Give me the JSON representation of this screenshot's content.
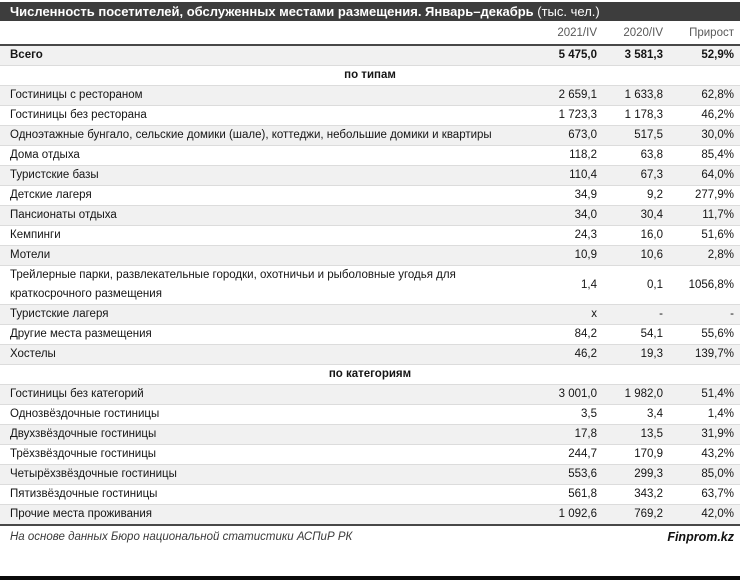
{
  "title": {
    "main": "Численность посетителей, обслуженных местами размещения. Январь–декабрь",
    "unit": " (тыс. чел.)"
  },
  "table": {
    "columns": [
      "2021/IV",
      "2020/IV",
      "Прирост"
    ],
    "rows": [
      {
        "type": "total",
        "label": "Всего",
        "v2021": "5 475,0",
        "v2020": "3 581,3",
        "growth": "52,9%"
      },
      {
        "type": "section",
        "label": "по типам"
      },
      {
        "type": "data",
        "label": "Гостиницы с рестораном",
        "v2021": "2 659,1",
        "v2020": "1 633,8",
        "growth": "62,8%"
      },
      {
        "type": "data",
        "label": "Гостиницы без ресторана",
        "v2021": "1 723,3",
        "v2020": "1 178,3",
        "growth": "46,2%"
      },
      {
        "type": "data",
        "label": "Одноэтажные бунгало, сельские домики (шале), коттеджи, небольшие домики и квартиры",
        "v2021": "673,0",
        "v2020": "517,5",
        "growth": "30,0%"
      },
      {
        "type": "data",
        "label": "Дома отдыха",
        "v2021": "118,2",
        "v2020": "63,8",
        "growth": "85,4%"
      },
      {
        "type": "data",
        "label": "Туристские базы",
        "v2021": "110,4",
        "v2020": "67,3",
        "growth": "64,0%"
      },
      {
        "type": "data",
        "label": "Детские лагеря",
        "v2021": "34,9",
        "v2020": "9,2",
        "growth": "277,9%"
      },
      {
        "type": "data",
        "label": "Пансионаты отдыха",
        "v2021": "34,0",
        "v2020": "30,4",
        "growth": "11,7%"
      },
      {
        "type": "data",
        "label": "Кемпинги",
        "v2021": "24,3",
        "v2020": "16,0",
        "growth": "51,6%"
      },
      {
        "type": "data",
        "label": "Мотели",
        "v2021": "10,9",
        "v2020": "10,6",
        "growth": "2,8%"
      },
      {
        "type": "data",
        "label": "Трейлерные парки, развлекательные городки, охотничьи и рыболовные угодья для краткосрочного размещения",
        "v2021": "1,4",
        "v2020": "0,1",
        "growth": "1056,8%"
      },
      {
        "type": "data",
        "label": "Туристские лагеря",
        "v2021": "x",
        "v2020": "-",
        "growth": "-"
      },
      {
        "type": "data",
        "label": "Другие места размещения",
        "v2021": "84,2",
        "v2020": "54,1",
        "growth": "55,6%"
      },
      {
        "type": "data",
        "label": "Хостелы",
        "v2021": "46,2",
        "v2020": "19,3",
        "growth": "139,7%"
      },
      {
        "type": "section",
        "label": "по категориям"
      },
      {
        "type": "data",
        "label": "Гостиницы без категорий",
        "v2021": "3 001,0",
        "v2020": "1 982,0",
        "growth": "51,4%"
      },
      {
        "type": "data",
        "label": "Однозвёздочные гостиницы",
        "v2021": "3,5",
        "v2020": "3,4",
        "growth": "1,4%"
      },
      {
        "type": "data",
        "label": "Двухзвёздочные гостиницы",
        "v2021": "17,8",
        "v2020": "13,5",
        "growth": "31,9%"
      },
      {
        "type": "data",
        "label": "Трёхзвёздочные гостиницы",
        "v2021": "244,7",
        "v2020": "170,9",
        "growth": "43,2%"
      },
      {
        "type": "data",
        "label": "Четырёхзвёздочные гостиницы",
        "v2021": "553,6",
        "v2020": "299,3",
        "growth": "85,0%"
      },
      {
        "type": "data",
        "label": "Пятизвёздочные гостиницы",
        "v2021": "561,8",
        "v2020": "343,2",
        "growth": "63,7%"
      },
      {
        "type": "data",
        "label": "Прочие места проживания",
        "v2021": "1 092,6",
        "v2020": "769,2",
        "growth": "42,0%"
      }
    ]
  },
  "footer": {
    "source": "На основе данных Бюро национальной статистики АСПиР РК",
    "brand": "Finprom.kz"
  },
  "colors": {
    "title_bar_bg": "#3d3d3d",
    "title_text": "#ffffff",
    "stripe_bg": "#f1f1f1",
    "header_text": "#595959",
    "dark_border": "#484848",
    "bottom_bar": "#0a0a0a"
  }
}
